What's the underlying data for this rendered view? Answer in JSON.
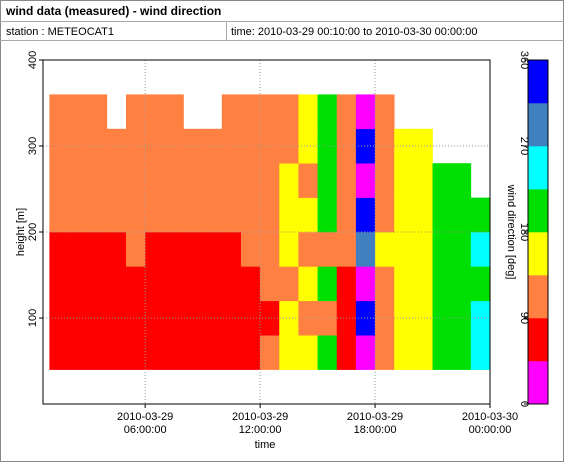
{
  "chart_data": {
    "type": "heatmap",
    "title": "wind data (measured) - wind direction",
    "station": "station : METEOCAT1",
    "period": "time: 2010-03-29 00:10:00 to 2010-03-30 00:00:00",
    "x_label": "time",
    "y_label": "height [m]",
    "colorbar_label": "wind direction [deg]",
    "x": [
      "2010-03-29 01:00:00",
      "2010-03-29 02:00:00",
      "2010-03-29 03:00:00",
      "2010-03-29 04:00:00",
      "2010-03-29 05:00:00",
      "2010-03-29 06:00:00",
      "2010-03-29 07:00:00",
      "2010-03-29 08:00:00",
      "2010-03-29 09:00:00",
      "2010-03-29 10:00:00",
      "2010-03-29 11:00:00",
      "2010-03-29 12:00:00",
      "2010-03-29 13:00:00",
      "2010-03-29 14:00:00",
      "2010-03-29 15:00:00",
      "2010-03-29 16:00:00",
      "2010-03-29 17:00:00",
      "2010-03-29 18:00:00",
      "2010-03-29 19:00:00",
      "2010-03-29 20:00:00",
      "2010-03-29 21:00:00",
      "2010-03-29 22:00:00",
      "2010-03-29 23:00:00"
    ],
    "y": [
      40,
      80,
      120,
      160,
      200,
      240,
      280,
      320
    ],
    "z": [
      [
        70,
        70,
        70,
        70,
        70,
        70,
        70,
        70,
        70,
        70,
        70,
        110,
        150,
        150,
        200,
        70,
        20,
        110,
        160,
        160,
        200,
        200,
        240
      ],
      [
        70,
        70,
        70,
        70,
        70,
        70,
        70,
        70,
        70,
        70,
        70,
        70,
        160,
        110,
        110,
        70,
        340,
        110,
        160,
        160,
        200,
        200,
        240
      ],
      [
        70,
        70,
        70,
        70,
        70,
        70,
        70,
        70,
        70,
        70,
        70,
        110,
        110,
        160,
        200,
        80,
        20,
        110,
        160,
        160,
        200,
        210,
        200
      ],
      [
        70,
        70,
        70,
        70,
        110,
        70,
        70,
        70,
        70,
        70,
        110,
        110,
        160,
        110,
        110,
        110,
        300,
        150,
        160,
        160,
        200,
        200,
        250
      ],
      [
        110,
        110,
        110,
        110,
        110,
        110,
        110,
        110,
        110,
        110,
        110,
        110,
        150,
        160,
        200,
        110,
        340,
        110,
        160,
        160,
        200,
        200,
        200
      ],
      [
        110,
        110,
        110,
        110,
        110,
        110,
        110,
        110,
        110,
        110,
        110,
        110,
        160,
        110,
        200,
        110,
        20,
        110,
        160,
        160,
        200,
        200,
        null
      ],
      [
        110,
        110,
        110,
        110,
        110,
        110,
        110,
        110,
        110,
        110,
        110,
        110,
        110,
        160,
        200,
        110,
        330,
        110,
        160,
        150,
        null,
        null,
        null
      ],
      [
        110,
        110,
        110,
        null,
        110,
        110,
        110,
        null,
        null,
        110,
        110,
        110,
        110,
        160,
        200,
        110,
        10,
        110,
        null,
        null,
        null,
        null,
        null
      ]
    ],
    "xlim": [
      "2010-03-29 00:40:00",
      "2010-03-30 00:00:00"
    ],
    "xticks": [
      "2010-03-29 06:00:00",
      "2010-03-29 12:00:00",
      "2010-03-29 18:00:00",
      "2010-03-30 00:00:00"
    ],
    "ylim": [
      0,
      400
    ],
    "yticks": [
      100,
      200,
      300,
      400
    ],
    "zlim": [
      0,
      360
    ],
    "zticks": [
      0,
      90,
      180,
      270,
      360
    ],
    "colors": [
      "#ff00ff",
      "#ff0000",
      "#ff8040",
      "#ffff00",
      "#00e000",
      "#00ffff",
      "#4080c0",
      "#0000ff"
    ],
    "grid": true
  }
}
